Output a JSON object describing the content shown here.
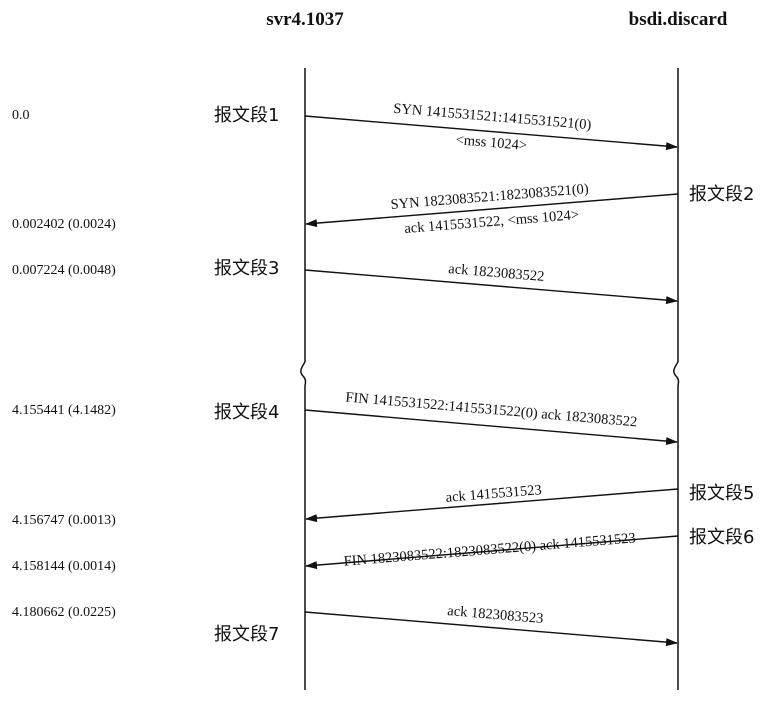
{
  "hosts": {
    "left": "svr4.1037",
    "right": "bsdi.discard"
  },
  "times": [
    "0.0",
    "0.002402 (0.0024)",
    "0.007224 (0.0048)",
    "4.155441 (4.1482)",
    "4.156747 (0.0013)",
    "4.158144 (0.0014)",
    "4.180662 (0.0225)"
  ],
  "segment_labels": [
    "报文段1",
    "报文段2",
    "报文段3",
    "报文段4",
    "报文段5",
    "报文段6",
    "报文段7"
  ],
  "messages": [
    {
      "direction": "right",
      "lines": [
        "SYN 1415531521:1415531521(0)",
        "<mss 1024>"
      ]
    },
    {
      "direction": "left",
      "lines": [
        "SYN 1823083521:1823083521(0)",
        "ack 1415531522, <mss 1024>"
      ]
    },
    {
      "direction": "right",
      "lines": [
        "ack 1823083522"
      ]
    },
    {
      "direction": "right",
      "lines": [
        "FIN 1415531522:1415531522(0) ack 1823083522"
      ]
    },
    {
      "direction": "left",
      "lines": [
        "ack 1415531523"
      ]
    },
    {
      "direction": "left",
      "lines": [
        "FIN 1823083522:1823083522(0) ack 1415531523"
      ]
    },
    {
      "direction": "right",
      "lines": [
        "ack 1823083523"
      ]
    }
  ]
}
